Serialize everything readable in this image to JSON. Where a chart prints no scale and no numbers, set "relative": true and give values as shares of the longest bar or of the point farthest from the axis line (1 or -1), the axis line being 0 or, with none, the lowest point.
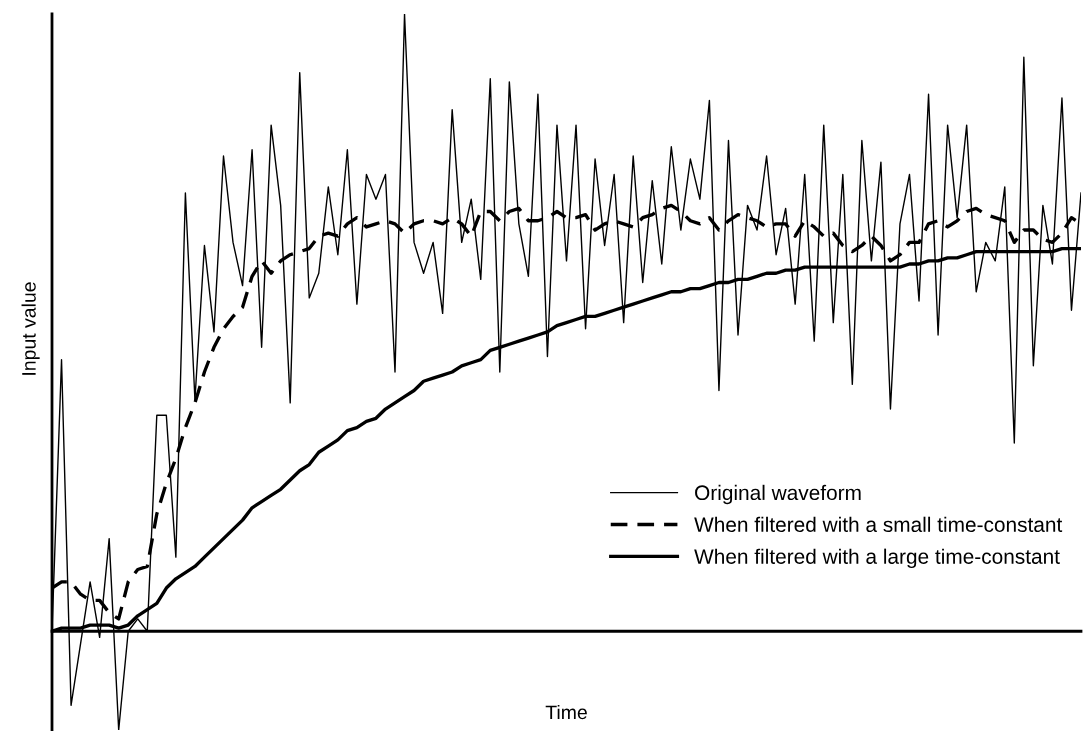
{
  "chart_data": {
    "type": "line",
    "xlabel": "Time",
    "ylabel": "Input value",
    "relative": true,
    "legend": "bottom right",
    "marker": "none",
    "categories": [
      null,
      null,
      null,
      null,
      null,
      null,
      null,
      null,
      null,
      null,
      null,
      null,
      null,
      null,
      null,
      null,
      null,
      null,
      null,
      null,
      null,
      null,
      null,
      null,
      null,
      null,
      null,
      null,
      null,
      null,
      null,
      null,
      null,
      null,
      null,
      null,
      null,
      null,
      null,
      null,
      null,
      null,
      null,
      null,
      null,
      null,
      null,
      null,
      null,
      null,
      null,
      null,
      null,
      null,
      null,
      null,
      null,
      null,
      null,
      null,
      null,
      null,
      null,
      null,
      null,
      null,
      null,
      null,
      null,
      null,
      null,
      null,
      null,
      null,
      null,
      null,
      null,
      null,
      null,
      null,
      null,
      null,
      null,
      null,
      null,
      null,
      null,
      null,
      null,
      null,
      null,
      null,
      null,
      null,
      null,
      null,
      null,
      null,
      null,
      null,
      null,
      null,
      null,
      null,
      null,
      null,
      null,
      null,
      null
    ],
    "series": [
      {
        "name": "Original waveform",
        "color": "#000000",
        "line_style": "solid",
        "values": [
          0,
          0.44,
          -0.12,
          -0.02,
          0.08,
          -0.01,
          0.15,
          -0.16,
          0,
          0.02,
          0,
          0.35,
          0.35,
          0.12,
          0.71,
          0.375,
          0.625,
          0.485,
          0.77,
          0.63,
          0.56,
          0.78,
          0.46,
          0.82,
          0.69,
          0.37,
          0.905,
          0.54,
          0.58,
          0.72,
          0.61,
          0.78,
          0.53,
          0.74,
          0.7,
          0.74,
          0.42,
          1.0,
          0.63,
          0.58,
          0.63,
          0.515,
          0.845,
          0.63,
          0.7,
          0.57,
          0.895,
          0.42,
          0.89,
          0.66,
          0.575,
          0.87,
          0.445,
          0.82,
          0.6,
          0.82,
          0.49,
          0.765,
          0.625,
          0.74,
          0.5,
          0.77,
          0.565,
          0.73,
          0.595,
          0.785,
          0.65,
          0.765,
          0.7,
          0.86,
          0.39,
          0.795,
          0.48,
          0.69,
          0.65,
          0.77,
          0.61,
          0.685,
          0.53,
          0.74,
          0.47,
          0.82,
          0.5,
          0.74,
          0.4,
          0.795,
          0.6,
          0.76,
          0.36,
          0.66,
          0.74,
          0.535,
          0.87,
          0.48,
          0.82,
          0.67,
          0.82,
          0.55,
          0.63,
          0.6,
          0.72,
          0.305,
          0.93,
          0.43,
          0.69,
          0.595,
          0.864,
          0.52,
          0.71
        ]
      },
      {
        "name": "When filtered with a small time-constant",
        "color": "#000000",
        "line_style": "dashed",
        "values": [
          0.07,
          0.08,
          0.08,
          0.06,
          0.05,
          0.05,
          0.03,
          0.02,
          0.08,
          0.1,
          0.105,
          0.19,
          0.24,
          0.28,
          0.33,
          0.37,
          0.42,
          0.46,
          0.49,
          0.51,
          0.525,
          0.575,
          0.6,
          0.58,
          0.6,
          0.61,
          0.615,
          0.62,
          0.64,
          0.645,
          0.64,
          0.66,
          0.67,
          0.655,
          0.66,
          0.665,
          0.66,
          0.645,
          0.66,
          0.665,
          0.665,
          0.66,
          0.67,
          0.66,
          0.64,
          0.68,
          0.68,
          0.665,
          0.68,
          0.685,
          0.665,
          0.665,
          0.67,
          0.68,
          0.67,
          0.67,
          0.675,
          0.65,
          0.66,
          0.665,
          0.66,
          0.655,
          0.67,
          0.675,
          0.685,
          0.69,
          0.68,
          0.665,
          0.66,
          0.67,
          0.65,
          0.665,
          0.675,
          0.67,
          0.665,
          0.655,
          0.66,
          0.66,
          0.64,
          0.665,
          0.655,
          0.64,
          0.645,
          0.625,
          0.615,
          0.625,
          0.64,
          0.625,
          0.6,
          0.61,
          0.63,
          0.63,
          0.66,
          0.665,
          0.655,
          0.665,
          0.68,
          0.685,
          0.675,
          0.67,
          0.665,
          0.63,
          0.65,
          0.65,
          0.635,
          0.63,
          0.645,
          0.67,
          0.66
        ]
      },
      {
        "name": "When filtered with a large time-constant",
        "color": "#000000",
        "line_style": "solid",
        "values": [
          0,
          0.005,
          0.005,
          0.005,
          0.01,
          0.01,
          0.01,
          0.005,
          0.01,
          0.025,
          0.035,
          0.045,
          0.07,
          0.085,
          0.095,
          0.105,
          0.12,
          0.135,
          0.15,
          0.165,
          0.18,
          0.2,
          0.21,
          0.22,
          0.23,
          0.245,
          0.26,
          0.27,
          0.29,
          0.3,
          0.31,
          0.325,
          0.33,
          0.34,
          0.345,
          0.36,
          0.37,
          0.38,
          0.39,
          0.405,
          0.41,
          0.415,
          0.42,
          0.43,
          0.435,
          0.44,
          0.455,
          0.46,
          0.465,
          0.47,
          0.475,
          0.48,
          0.485,
          0.495,
          0.5,
          0.505,
          0.51,
          0.51,
          0.515,
          0.52,
          0.525,
          0.53,
          0.535,
          0.54,
          0.545,
          0.55,
          0.55,
          0.555,
          0.555,
          0.56,
          0.565,
          0.565,
          0.57,
          0.57,
          0.575,
          0.58,
          0.58,
          0.585,
          0.585,
          0.59,
          0.59,
          0.59,
          0.59,
          0.59,
          0.59,
          0.59,
          0.59,
          0.59,
          0.59,
          0.59,
          0.595,
          0.595,
          0.6,
          0.6,
          0.605,
          0.605,
          0.61,
          0.615,
          0.615,
          0.615,
          0.615,
          0.615,
          0.615,
          0.615,
          0.615,
          0.615,
          0.62,
          0.62,
          0.62
        ]
      }
    ]
  }
}
